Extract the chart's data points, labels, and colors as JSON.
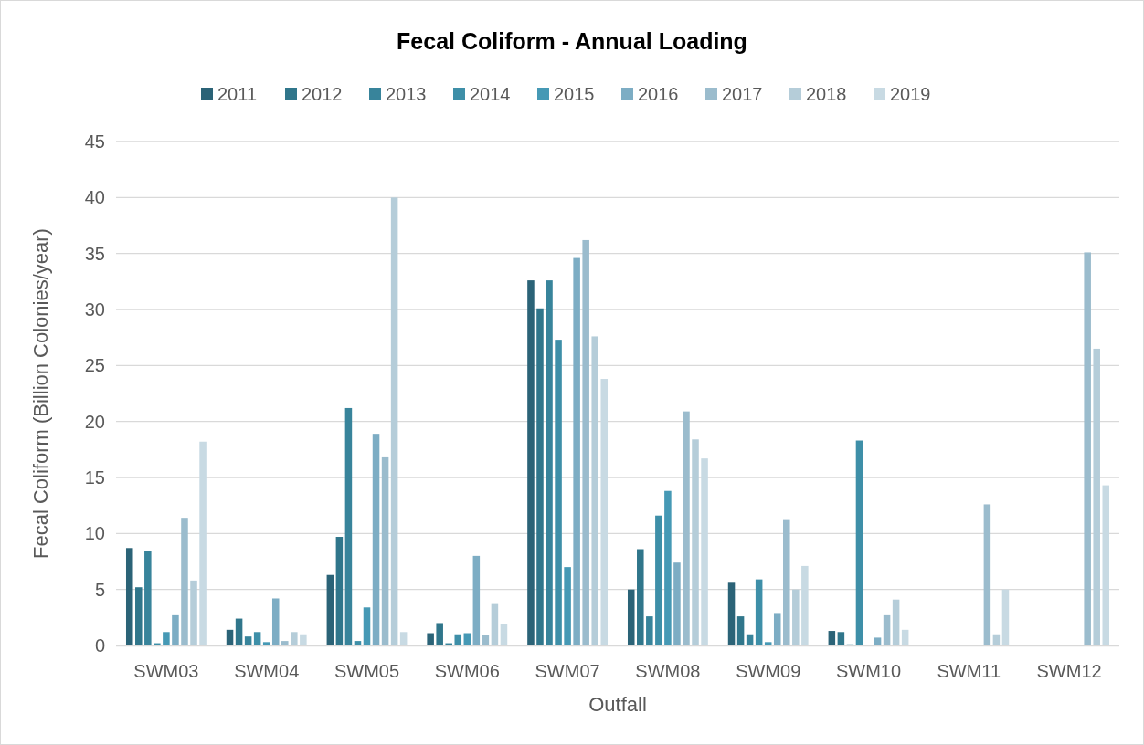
{
  "chart_data": {
    "type": "bar",
    "title": "Fecal Coliform - Annual Loading",
    "xlabel": "Outfall",
    "ylabel": "Fecal Coliform (Billion Colonies/year)",
    "categories": [
      "SWM03",
      "SWM04",
      "SWM05",
      "SWM06",
      "SWM07",
      "SWM08",
      "SWM09",
      "SWM10",
      "SWM11",
      "SWM12"
    ],
    "series": [
      {
        "name": "2011",
        "color": "#2b6377",
        "values": [
          8.7,
          1.4,
          6.3,
          1.1,
          32.6,
          5.0,
          5.6,
          1.3,
          null,
          null
        ]
      },
      {
        "name": "2012",
        "color": "#30768b",
        "values": [
          5.2,
          2.4,
          9.7,
          2.0,
          30.1,
          8.6,
          2.6,
          1.2,
          null,
          null
        ]
      },
      {
        "name": "2013",
        "color": "#38849b",
        "values": [
          8.4,
          0.8,
          21.2,
          0.2,
          32.6,
          2.6,
          1.0,
          0.1,
          null,
          null
        ]
      },
      {
        "name": "2014",
        "color": "#3e8fa8",
        "values": [
          0.2,
          1.2,
          0.4,
          1.0,
          27.3,
          11.6,
          5.9,
          18.3,
          null,
          null
        ]
      },
      {
        "name": "2015",
        "color": "#4699b5",
        "values": [
          1.2,
          0.3,
          3.4,
          1.1,
          7.0,
          13.8,
          0.3,
          null,
          null,
          null
        ]
      },
      {
        "name": "2016",
        "color": "#7dadc4",
        "values": [
          2.7,
          4.2,
          18.9,
          8.0,
          34.6,
          7.4,
          2.9,
          0.7,
          null,
          null
        ]
      },
      {
        "name": "2017",
        "color": "#9bbccd",
        "values": [
          11.4,
          0.4,
          16.8,
          0.9,
          36.2,
          20.9,
          11.2,
          2.7,
          12.6,
          35.1
        ]
      },
      {
        "name": "2018",
        "color": "#b5cdd9",
        "values": [
          5.8,
          1.2,
          40.0,
          3.7,
          27.6,
          18.4,
          5.0,
          4.1,
          1.0,
          26.5
        ]
      },
      {
        "name": "2019",
        "color": "#c8dae3",
        "values": [
          18.2,
          1.0,
          1.2,
          1.9,
          23.8,
          16.7,
          7.1,
          1.4,
          5.0,
          14.3
        ]
      }
    ],
    "ylim": [
      0,
      45
    ],
    "yticks": [
      0,
      5,
      10,
      15,
      20,
      25,
      30,
      35,
      40,
      45
    ],
    "grid": "y",
    "legend": "top"
  }
}
